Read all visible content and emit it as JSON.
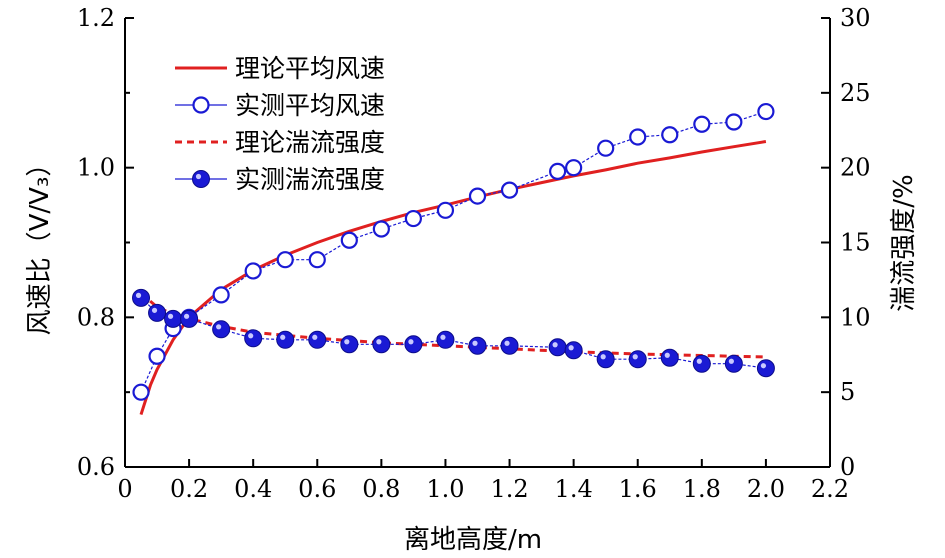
{
  "chart_data": {
    "type": "line",
    "title": "",
    "xlabel": "离地高度/m",
    "ylabel_left": "风速比（V/V₃）",
    "ylabel_right": "湍流强度/%",
    "xlim": [
      0,
      2.2
    ],
    "xticks": [
      0,
      0.2,
      0.4,
      0.6,
      0.8,
      1.0,
      1.2,
      1.4,
      1.6,
      1.8,
      2.0,
      2.2
    ],
    "xtick_labels": [
      "0",
      "0.2",
      "0.4",
      "0.6",
      "0.8",
      "1.0",
      "1.2",
      "1.4",
      "1.6",
      "1.8",
      "2.0",
      "2.2"
    ],
    "ylim_left": [
      0.6,
      1.2
    ],
    "yticks_left": [
      0.6,
      0.8,
      1.0,
      1.2
    ],
    "ytick_labels_left": [
      "0.6",
      "0.8",
      "1.0",
      "1.2"
    ],
    "ylim_right": [
      0,
      30
    ],
    "yticks_right": [
      0,
      5,
      10,
      15,
      20,
      25,
      30
    ],
    "ytick_labels_right": [
      "0",
      "5",
      "10",
      "15",
      "20",
      "25",
      "30"
    ],
    "grid": false,
    "legend_position": "top-left",
    "series": [
      {
        "name": "理论平均风速",
        "axis": "left",
        "style": "solid-line",
        "color": "#e02020",
        "x": [
          0.05,
          0.08,
          0.1,
          0.15,
          0.2,
          0.3,
          0.4,
          0.5,
          0.6,
          0.7,
          0.8,
          0.9,
          1.0,
          1.1,
          1.2,
          1.3,
          1.4,
          1.5,
          1.6,
          1.7,
          1.8,
          1.9,
          2.0
        ],
        "y": [
          0.67,
          0.71,
          0.73,
          0.77,
          0.8,
          0.837,
          0.863,
          0.883,
          0.9,
          0.915,
          0.928,
          0.94,
          0.95,
          0.961,
          0.971,
          0.98,
          0.989,
          0.997,
          1.006,
          1.013,
          1.021,
          1.028,
          1.035
        ]
      },
      {
        "name": "实测平均风速",
        "axis": "left",
        "style": "open-circle-line",
        "color": "#1a1ad4",
        "x": [
          0.05,
          0.1,
          0.15,
          0.2,
          0.3,
          0.4,
          0.5,
          0.6,
          0.7,
          0.8,
          0.9,
          1.0,
          1.1,
          1.2,
          1.35,
          1.4,
          1.5,
          1.6,
          1.7,
          1.8,
          1.9,
          2.0
        ],
        "y": [
          0.7,
          0.748,
          0.785,
          0.8,
          0.83,
          0.862,
          0.877,
          0.877,
          0.903,
          0.918,
          0.932,
          0.943,
          0.962,
          0.97,
          0.995,
          1.0,
          1.026,
          1.041,
          1.044,
          1.058,
          1.061,
          1.075
        ]
      },
      {
        "name": "理论湍流强度",
        "axis": "right",
        "style": "dashed-line",
        "color": "#e02020",
        "x": [
          0.05,
          0.1,
          0.15,
          0.2,
          0.3,
          0.4,
          0.5,
          0.6,
          0.7,
          0.8,
          0.9,
          1.0,
          1.2,
          1.4,
          1.6,
          1.8,
          2.0
        ],
        "y": [
          11.6,
          10.7,
          10.2,
          9.9,
          9.4,
          9.0,
          8.8,
          8.6,
          8.45,
          8.3,
          8.2,
          8.1,
          7.9,
          7.7,
          7.55,
          7.45,
          7.35
        ]
      },
      {
        "name": "实测湍流强度",
        "axis": "right",
        "style": "filled-circle-line",
        "color": "#1a1ad4",
        "x": [
          0.05,
          0.1,
          0.15,
          0.2,
          0.3,
          0.4,
          0.5,
          0.6,
          0.7,
          0.8,
          0.9,
          1.0,
          1.1,
          1.2,
          1.35,
          1.4,
          1.5,
          1.6,
          1.7,
          1.8,
          1.9,
          2.0
        ],
        "y": [
          11.3,
          10.3,
          9.9,
          9.9,
          9.2,
          8.6,
          8.5,
          8.5,
          8.2,
          8.2,
          8.2,
          8.5,
          8.1,
          8.1,
          8.0,
          7.8,
          7.2,
          7.2,
          7.3,
          6.9,
          6.9,
          6.6
        ]
      }
    ]
  }
}
